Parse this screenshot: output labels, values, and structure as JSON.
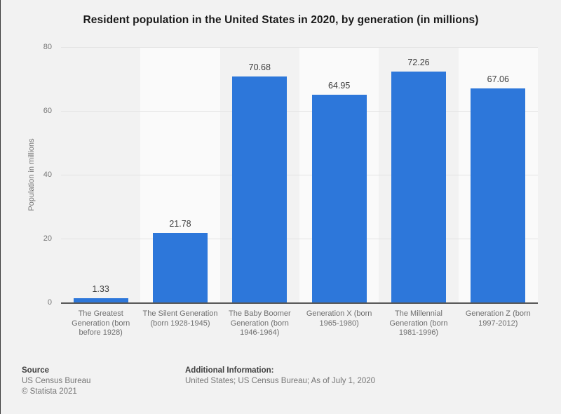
{
  "chart_data": {
    "type": "bar",
    "title": "Resident population in the United States in 2020, by generation (in millions)",
    "categories": [
      "The Greatest Generation (born before 1928)",
      "The Silent Generation (born 1928-1945)",
      "The Baby Boomer Generation (born 1946-1964)",
      "Generation X (born 1965-1980)",
      "The Millennial Generation (born 1981-1996)",
      "Generation Z (born 1997-2012)"
    ],
    "values": [
      1.33,
      21.78,
      70.68,
      64.95,
      72.26,
      67.06
    ],
    "value_labels": [
      "1.33",
      "21.78",
      "70.68",
      "64.95",
      "72.26",
      "67.06"
    ],
    "xlabel": "",
    "ylabel": "Population in millions",
    "ylim": [
      0,
      80
    ],
    "yticks": [
      80,
      60,
      40,
      20,
      0
    ],
    "grid": true,
    "legend_position": "none",
    "bar_color": "#2d77da",
    "band_color": "#fafafa",
    "background_color": "#f2f2f2"
  },
  "footer": {
    "source_label": "Source",
    "source_line1": "US Census Bureau",
    "source_line2": "© Statista 2021",
    "additional_label": "Additional Information:",
    "additional_value": "United States; US Census Bureau; As of July 1, 2020"
  }
}
